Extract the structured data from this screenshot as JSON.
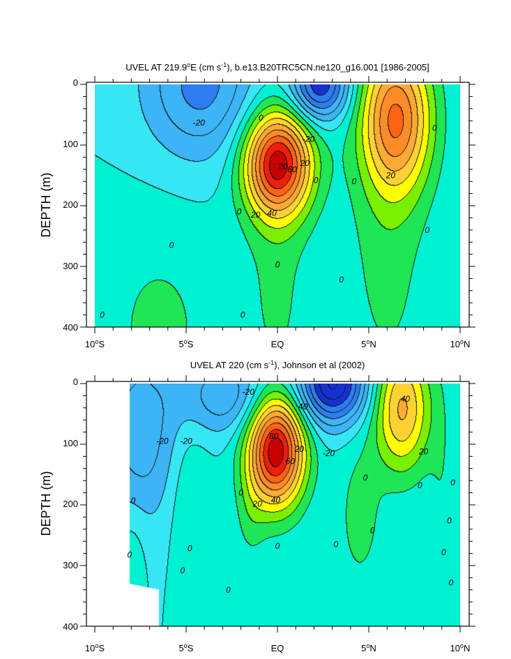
{
  "chart_data": [
    {
      "type": "contour",
      "title_prefix": "UVEL AT 219.9",
      "title_sup1": "o",
      "title_mid": "E (cm s",
      "title_sup2": "-1",
      "title_suffix": "), b.e13.B20TRC5CN.ne120_g16.001 [1986-2005]",
      "ylabel": "DEPTH (m)",
      "x_ticks": [
        {
          "num": "10",
          "sup": "o",
          "hem": "S"
        },
        {
          "num": "5",
          "sup": "o",
          "hem": "S"
        },
        {
          "num": "EQ",
          "sup": "",
          "hem": ""
        },
        {
          "num": "5",
          "sup": "o",
          "hem": "N"
        },
        {
          "num": "10",
          "sup": "o",
          "hem": "N"
        }
      ],
      "y_ticks": [
        "0",
        "100",
        "200",
        "300",
        "400"
      ],
      "xlim": [
        -10,
        10
      ],
      "ylim": [
        0,
        400
      ],
      "y_reversed": true,
      "features": [
        {
          "lat": 0.0,
          "depth": 130,
          "value": 90,
          "sx": 1.3,
          "sd": 60
        },
        {
          "lat": 6.5,
          "depth": 55,
          "value": 65,
          "sx": 1.35,
          "sd": 85
        },
        {
          "lat": 2.3,
          "depth": 0,
          "value": -60,
          "sx": 1.1,
          "sd": 40
        },
        {
          "lat": -4.2,
          "depth": 0,
          "value": -34,
          "sx": 2.2,
          "sd": 85
        },
        {
          "lat": -6.5,
          "depth": 400,
          "value": 12,
          "sx": 2.5,
          "sd": 130
        },
        {
          "lat": 0.0,
          "depth": 300,
          "value": 12,
          "sx": 1.3,
          "sd": 200
        },
        {
          "lat": 6.0,
          "depth": 250,
          "value": 14,
          "sx": 1.6,
          "sd": 200
        }
      ],
      "contour_labels": [
        {
          "text": "-20",
          "lat": -4.3,
          "depth": 63
        },
        {
          "text": "0",
          "lat": -0.9,
          "depth": 55
        },
        {
          "text": "-20",
          "lat": 1.7,
          "depth": 90
        },
        {
          "text": "20",
          "lat": 0.3,
          "depth": 135
        },
        {
          "text": "60",
          "lat": 0.8,
          "depth": 140
        },
        {
          "text": "0",
          "lat": 2.1,
          "depth": 158
        },
        {
          "text": "20",
          "lat": 1.5,
          "depth": 130
        },
        {
          "text": "40",
          "lat": -0.3,
          "depth": 212
        },
        {
          "text": "20",
          "lat": -1.2,
          "depth": 215
        },
        {
          "text": "0",
          "lat": -2.1,
          "depth": 210
        },
        {
          "text": "0",
          "lat": -5.8,
          "depth": 265
        },
        {
          "text": "0",
          "lat": 0.0,
          "depth": 297
        },
        {
          "text": "0",
          "lat": 3.5,
          "depth": 322
        },
        {
          "text": "0",
          "lat": 4.2,
          "depth": 160
        },
        {
          "text": "20",
          "lat": 6.2,
          "depth": 150
        },
        {
          "text": "0",
          "lat": 8.6,
          "depth": 72
        },
        {
          "text": "0",
          "lat": 8.2,
          "depth": 240
        },
        {
          "text": "0",
          "lat": -9.6,
          "depth": 380
        },
        {
          "text": "0",
          "lat": -1.9,
          "depth": 380
        }
      ]
    },
    {
      "type": "contour",
      "title_prefix": "UVEL AT 220 (cm s",
      "title_sup1": "-1",
      "title_mid": "), Johnson et al (2002)",
      "title_sup2": "",
      "title_suffix": "",
      "ylabel": "DEPTH (m)",
      "x_ticks": [
        {
          "num": "10",
          "sup": "o",
          "hem": "S"
        },
        {
          "num": "5",
          "sup": "o",
          "hem": "S"
        },
        {
          "num": "EQ",
          "sup": "",
          "hem": ""
        },
        {
          "num": "5",
          "sup": "o",
          "hem": "N"
        },
        {
          "num": "10",
          "sup": "o",
          "hem": "N"
        }
      ],
      "y_ticks": [
        "0",
        "100",
        "200",
        "300",
        "400"
      ],
      "xlim": [
        -10,
        10
      ],
      "ylim": [
        0,
        400
      ],
      "y_reversed": true,
      "features": [
        {
          "lat": -0.1,
          "depth": 110,
          "value": 98,
          "sx": 1.1,
          "sd": 65
        },
        {
          "lat": 6.8,
          "depth": 40,
          "value": 52,
          "sx": 1.1,
          "sd": 75
        },
        {
          "lat": 3.0,
          "depth": 0,
          "value": -72,
          "sx": 1.3,
          "sd": 45
        },
        {
          "lat": -2.8,
          "depth": 20,
          "value": -28,
          "sx": 1.7,
          "sd": 45
        },
        {
          "lat": -7.5,
          "depth": 80,
          "value": -26,
          "sx": 1.5,
          "sd": 110
        },
        {
          "lat": -4.8,
          "depth": 200,
          "value": 12,
          "sx": 0.8,
          "sd": 100
        },
        {
          "lat": 4.5,
          "depth": 220,
          "value": 14,
          "sx": 0.9,
          "sd": 90
        },
        {
          "lat": -1.5,
          "depth": 220,
          "value": 10,
          "sx": 0.6,
          "sd": 60
        },
        {
          "lat": -8.0,
          "depth": 270,
          "value": 9,
          "sx": 0.6,
          "sd": 60
        },
        {
          "lat": 9.0,
          "depth": 200,
          "value": 8,
          "sx": 0.5,
          "sd": 150
        }
      ],
      "missing_left_lat": -8.1,
      "contour_labels": [
        {
          "text": "-20",
          "lat": -1.6,
          "depth": 14
        },
        {
          "text": "40",
          "lat": 1.4,
          "depth": 38
        },
        {
          "text": "40",
          "lat": 7.0,
          "depth": 25
        },
        {
          "text": "-20",
          "lat": -6.3,
          "depth": 95
        },
        {
          "text": "-20",
          "lat": -5.0,
          "depth": 95
        },
        {
          "text": "80",
          "lat": -0.2,
          "depth": 87
        },
        {
          "text": "20",
          "lat": 1.2,
          "depth": 108
        },
        {
          "text": "60",
          "lat": 0.7,
          "depth": 128
        },
        {
          "text": "-20",
          "lat": 2.8,
          "depth": 115
        },
        {
          "text": "20",
          "lat": 8.0,
          "depth": 112
        },
        {
          "text": "0",
          "lat": 4.8,
          "depth": 155
        },
        {
          "text": "0",
          "lat": 7.8,
          "depth": 168
        },
        {
          "text": "0",
          "lat": 9.6,
          "depth": 163
        },
        {
          "text": "0",
          "lat": -7.9,
          "depth": 193
        },
        {
          "text": "20",
          "lat": -1.1,
          "depth": 198
        },
        {
          "text": "40",
          "lat": -0.1,
          "depth": 192
        },
        {
          "text": "0",
          "lat": -2.0,
          "depth": 180
        },
        {
          "text": "0",
          "lat": 9.4,
          "depth": 226
        },
        {
          "text": "0",
          "lat": 5.2,
          "depth": 242
        },
        {
          "text": "0",
          "lat": 0.0,
          "depth": 268
        },
        {
          "text": "0",
          "lat": 3.2,
          "depth": 265
        },
        {
          "text": "0",
          "lat": -4.8,
          "depth": 272
        },
        {
          "text": "0",
          "lat": -8.1,
          "depth": 282
        },
        {
          "text": "0",
          "lat": 9.1,
          "depth": 278
        },
        {
          "text": "0",
          "lat": -5.2,
          "depth": 308
        },
        {
          "text": "0",
          "lat": -2.7,
          "depth": 340
        },
        {
          "text": "0",
          "lat": 9.5,
          "depth": 328
        }
      ]
    }
  ],
  "contour_levels": [
    -100,
    -90,
    -80,
    -70,
    -60,
    -50,
    -40,
    -30,
    -20,
    -10,
    0,
    10,
    20,
    30,
    40,
    50,
    60,
    70,
    80,
    90,
    100
  ],
  "colors": {
    "band_neg60": "#1432d2",
    "band_neg40": "#2d7cf0",
    "band_neg20": "#3cb4f5",
    "band_neg10": "#37e6f5",
    "band_0": "#00f0d2",
    "band_10": "#1ee655",
    "band_20": "#78f000",
    "band_30": "#ffff00",
    "band_40": "#ffd232",
    "band_50": "#ffaa32",
    "band_60": "#ff8c28",
    "band_70": "#ff6414",
    "band_80": "#f01e0a",
    "band_90": "#c80000"
  }
}
